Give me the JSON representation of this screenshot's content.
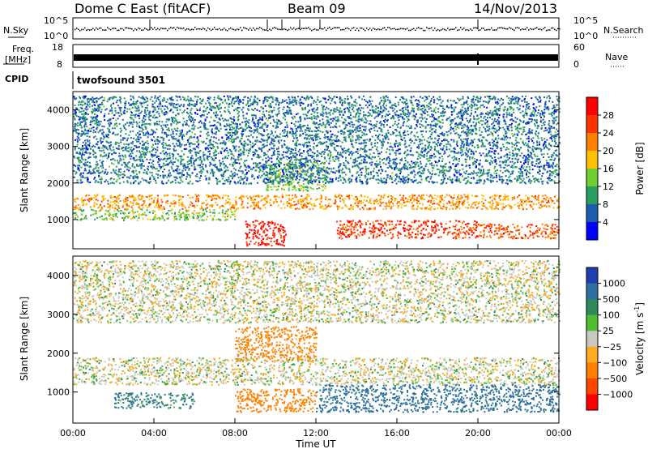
{
  "header": {
    "station": "Dome C East (fitACF)",
    "beam": "Beam 09",
    "date": "14/Nov/2013"
  },
  "noise_panel": {
    "left_label": "N.Sky",
    "right_label": "N.Search",
    "left_ticks": [
      "10^5",
      "10^0"
    ],
    "right_ticks": [
      "10^5",
      "10^0"
    ]
  },
  "freq_panel": {
    "left_label_1": "Freq.",
    "left_label_2": "[MHz]",
    "left_ticks": [
      "18",
      "8"
    ],
    "right_label": "Nave",
    "right_ticks": [
      "60",
      "0"
    ]
  },
  "cpid": {
    "label": "CPID",
    "value": "twofsound 3501"
  },
  "axes": {
    "ylabel": "Slant Range [km]",
    "xlabel": "Time UT",
    "x_ticks": [
      "00:00",
      "04:00",
      "08:00",
      "12:00",
      "16:00",
      "20:00",
      "00:00"
    ],
    "y_ticks": [
      "1000",
      "2000",
      "3000",
      "4000"
    ]
  },
  "power_colorbar": {
    "label": "Power [dB]",
    "ticks": [
      "28",
      "24",
      "20",
      "16",
      "12",
      "8",
      "4"
    ],
    "colors": [
      "#ff0000",
      "#ff3300",
      "#ff7f00",
      "#ffc000",
      "#6fcf30",
      "#2a9d60",
      "#1a5cb0",
      "#0000ff"
    ]
  },
  "velocity_colorbar": {
    "label": "Velocity [m s",
    "label_sup": "-1",
    "label_end": "]",
    "ticks": [
      "1000",
      "500",
      "100",
      "25",
      "−25",
      "−100",
      "−500",
      "−1000"
    ],
    "colors": [
      "#1f3fb0",
      "#2c6fa0",
      "#2f8a5a",
      "#4fbf30",
      "#c8c8c0",
      "#ffaa20",
      "#ff7f00",
      "#ff4400",
      "#ff0000"
    ]
  },
  "chart_data": [
    {
      "type": "heatmap",
      "title": "Power",
      "xlabel": "Time UT",
      "ylabel": "Slant Range [km]",
      "xlim": [
        0,
        24
      ],
      "ylim": [
        200,
        4500
      ],
      "colorbar_range": [
        0,
        30
      ],
      "bands": [
        {
          "t0": 0,
          "t1": 24,
          "r0": 1300,
          "r1": 1700,
          "level": 20
        },
        {
          "t0": 0,
          "t1": 8,
          "r0": 1000,
          "r1": 1300,
          "level": 12
        },
        {
          "t0": 8.5,
          "t1": 10.5,
          "r0": 300,
          "r1": 1000,
          "level": 28
        },
        {
          "t0": 13,
          "t1": 20,
          "r0": 500,
          "r1": 1000,
          "level": 26
        },
        {
          "t0": 20,
          "t1": 24,
          "r0": 500,
          "r1": 900,
          "level": 24
        },
        {
          "t0": 9.5,
          "t1": 12.5,
          "r0": 1800,
          "r1": 2600,
          "level": 12
        },
        {
          "t0": 0,
          "t1": 24,
          "r0": 2000,
          "r1": 4400,
          "level": 6
        }
      ]
    },
    {
      "type": "heatmap",
      "title": "Velocity",
      "xlabel": "Time UT",
      "ylabel": "Slant Range [km]",
      "xlim": [
        0,
        24
      ],
      "ylim": [
        200,
        4500
      ],
      "colorbar_range": [
        -1000,
        1000
      ],
      "bands": [
        {
          "t0": 0,
          "t1": 24,
          "r0": 1200,
          "r1": 1900,
          "level": 0
        },
        {
          "t0": 2,
          "t1": 6,
          "r0": 600,
          "r1": 1000,
          "level": 100
        },
        {
          "t0": 8,
          "t1": 12,
          "r0": 500,
          "r1": 1100,
          "level": -200
        },
        {
          "t0": 12,
          "t1": 24,
          "r0": 500,
          "r1": 1200,
          "level": 150
        },
        {
          "t0": 8,
          "t1": 12,
          "r0": 1800,
          "r1": 2700,
          "level": -150
        },
        {
          "t0": 0,
          "t1": 24,
          "r0": 2800,
          "r1": 4400,
          "level": 0
        }
      ]
    }
  ]
}
